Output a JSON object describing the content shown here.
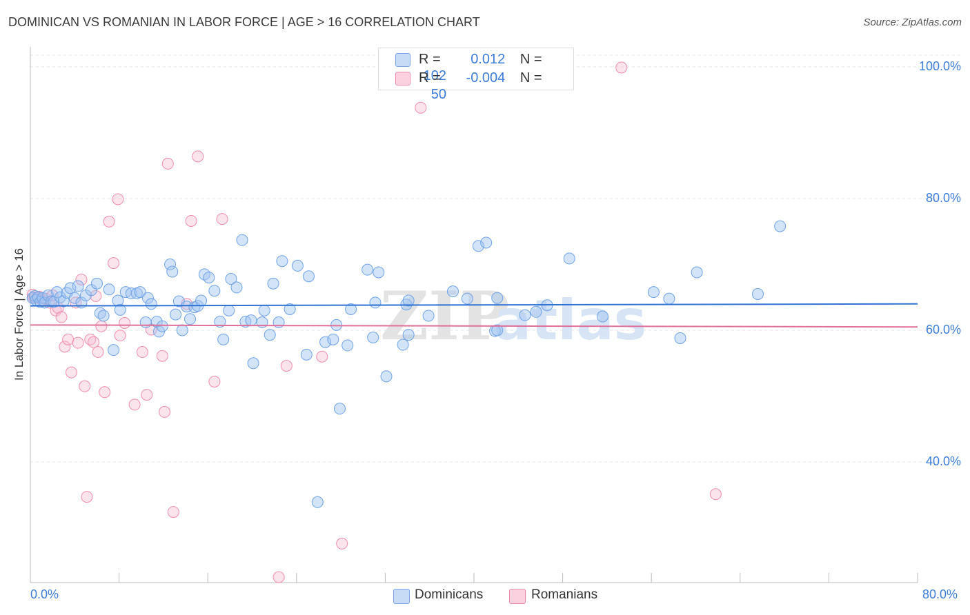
{
  "header": {
    "title": "DOMINICAN VS ROMANIAN IN LABOR FORCE | AGE > 16 CORRELATION CHART",
    "source": "Source: ZipAtlas.com"
  },
  "watermark": {
    "zip": "ZIP",
    "atlas": "atlas"
  },
  "legend": {
    "rows": [
      {
        "r_label": "R =",
        "r_value": "0.012",
        "n_label": "N =",
        "n_value": "102",
        "color": "#6ea2e6"
      },
      {
        "r_label": "R =",
        "r_value": "-0.004",
        "n_label": "N =",
        "n_value": "50",
        "color": "#f08cab"
      }
    ]
  },
  "bottom_legend": {
    "dominicans": "Dominicans",
    "romanians": "Romanians"
  },
  "chart_data": {
    "type": "scatter",
    "title": "DOMINICAN VS ROMANIAN IN LABOR FORCE | AGE > 16 CORRELATION CHART",
    "xlabel": "",
    "ylabel": "In Labor Force | Age > 16",
    "xlim": [
      0,
      80
    ],
    "ylim": [
      20,
      100
    ],
    "x_tick_labels": [
      "0.0%",
      "80.0%"
    ],
    "y_tick_values": [
      40,
      60,
      80,
      100
    ],
    "y_tick_labels": [
      "40.0%",
      "60.0%",
      "80.0%",
      "100.0%"
    ],
    "grid": true,
    "legend_position": "top-center",
    "series": [
      {
        "name": "Dominicans",
        "color": "#6ea2e6",
        "trend": {
          "x": [
            0,
            80
          ],
          "y": [
            63.7,
            64.0
          ]
        },
        "points": [
          [
            0.2,
            64.9
          ],
          [
            0.4,
            65.2
          ],
          [
            0.5,
            64.6
          ],
          [
            0.7,
            65.0
          ],
          [
            0.9,
            64.3
          ],
          [
            1.1,
            64.9
          ],
          [
            1.3,
            64.2
          ],
          [
            1.6,
            65.3
          ],
          [
            1.9,
            64.4
          ],
          [
            2.1,
            64.3
          ],
          [
            2.4,
            65.8
          ],
          [
            2.7,
            65.0
          ],
          [
            3.0,
            64.4
          ],
          [
            3.3,
            65.7
          ],
          [
            3.6,
            66.4
          ],
          [
            4.0,
            64.9
          ],
          [
            4.3,
            66.7
          ],
          [
            4.6,
            64.2
          ],
          [
            5.0,
            65.3
          ],
          [
            5.5,
            66.1
          ],
          [
            6.0,
            67.1
          ],
          [
            6.3,
            62.6
          ],
          [
            6.6,
            62.2
          ],
          [
            7.1,
            66.2
          ],
          [
            7.5,
            57.0
          ],
          [
            7.9,
            64.5
          ],
          [
            8.1,
            63.1
          ],
          [
            8.6,
            65.8
          ],
          [
            9.1,
            65.6
          ],
          [
            9.6,
            65.6
          ],
          [
            9.9,
            65.8
          ],
          [
            10.4,
            61.2
          ],
          [
            10.6,
            64.9
          ],
          [
            10.9,
            64.0
          ],
          [
            11.4,
            61.3
          ],
          [
            11.6,
            59.8
          ],
          [
            11.9,
            60.6
          ],
          [
            12.6,
            70.0
          ],
          [
            12.8,
            68.9
          ],
          [
            13.1,
            62.4
          ],
          [
            13.4,
            64.4
          ],
          [
            13.7,
            60.0
          ],
          [
            14.1,
            63.6
          ],
          [
            14.4,
            61.7
          ],
          [
            14.8,
            63.5
          ],
          [
            15.1,
            63.7
          ],
          [
            15.4,
            64.5
          ],
          [
            15.7,
            68.5
          ],
          [
            16.1,
            68.0
          ],
          [
            16.6,
            66.0
          ],
          [
            17.1,
            61.3
          ],
          [
            17.4,
            58.6
          ],
          [
            17.9,
            63.0
          ],
          [
            18.1,
            67.8
          ],
          [
            18.6,
            66.5
          ],
          [
            19.1,
            73.7
          ],
          [
            19.4,
            61.3
          ],
          [
            19.9,
            61.5
          ],
          [
            20.1,
            55.0
          ],
          [
            20.9,
            61.2
          ],
          [
            21.1,
            63.0
          ],
          [
            21.6,
            59.3
          ],
          [
            21.9,
            67.1
          ],
          [
            22.4,
            61.2
          ],
          [
            22.7,
            70.5
          ],
          [
            23.4,
            63.2
          ],
          [
            24.1,
            69.8
          ],
          [
            24.9,
            56.3
          ],
          [
            25.1,
            68.2
          ],
          [
            25.9,
            33.9
          ],
          [
            26.6,
            58.2
          ],
          [
            27.3,
            58.6
          ],
          [
            27.6,
            60.8
          ],
          [
            27.9,
            48.1
          ],
          [
            28.6,
            57.7
          ],
          [
            28.9,
            63.2
          ],
          [
            30.4,
            69.2
          ],
          [
            30.9,
            58.9
          ],
          [
            31.1,
            64.2
          ],
          [
            31.4,
            68.8
          ],
          [
            32.1,
            53.0
          ],
          [
            33.9,
            63.9
          ],
          [
            33.6,
            57.8
          ],
          [
            34.1,
            59.3
          ],
          [
            34.1,
            64.5
          ],
          [
            35.9,
            62.2
          ],
          [
            38.1,
            65.9
          ],
          [
            39.4,
            64.8
          ],
          [
            40.4,
            72.8
          ],
          [
            41.1,
            73.3
          ],
          [
            41.9,
            59.9
          ],
          [
            42.1,
            64.9
          ],
          [
            42.1,
            60.0
          ],
          [
            44.6,
            62.3
          ],
          [
            45.6,
            62.8
          ],
          [
            46.6,
            63.8
          ],
          [
            48.6,
            70.9
          ],
          [
            51.6,
            62.1
          ],
          [
            56.2,
            65.8
          ],
          [
            57.6,
            64.8
          ],
          [
            58.6,
            58.8
          ],
          [
            60.1,
            68.8
          ],
          [
            65.6,
            65.5
          ],
          [
            67.6,
            75.8
          ]
        ]
      },
      {
        "name": "Romanians",
        "color": "#f08cab",
        "trend": {
          "x": [
            0,
            80
          ],
          "y": [
            60.8,
            60.5
          ]
        },
        "points": [
          [
            0.2,
            65.4
          ],
          [
            0.5,
            64.9
          ],
          [
            0.8,
            65.1
          ],
          [
            1.1,
            64.6
          ],
          [
            1.4,
            64.8
          ],
          [
            1.7,
            64.2
          ],
          [
            2.0,
            65.3
          ],
          [
            2.3,
            63.0
          ],
          [
            2.5,
            63.4
          ],
          [
            2.8,
            62.0
          ],
          [
            3.1,
            57.5
          ],
          [
            3.4,
            58.6
          ],
          [
            3.7,
            53.6
          ],
          [
            4.1,
            64.2
          ],
          [
            4.3,
            58.1
          ],
          [
            4.6,
            67.7
          ],
          [
            4.9,
            51.5
          ],
          [
            5.1,
            34.7
          ],
          [
            5.4,
            58.6
          ],
          [
            5.7,
            58.2
          ],
          [
            5.9,
            65.2
          ],
          [
            6.1,
            56.7
          ],
          [
            6.4,
            60.6
          ],
          [
            6.7,
            50.6
          ],
          [
            7.1,
            76.5
          ],
          [
            7.5,
            70.2
          ],
          [
            7.9,
            79.9
          ],
          [
            8.1,
            59.2
          ],
          [
            8.5,
            61.1
          ],
          [
            9.4,
            48.7
          ],
          [
            10.1,
            56.7
          ],
          [
            10.5,
            50.2
          ],
          [
            10.9,
            60.1
          ],
          [
            11.9,
            56.1
          ],
          [
            12.1,
            47.6
          ],
          [
            12.4,
            85.3
          ],
          [
            12.9,
            32.4
          ],
          [
            14.1,
            64.0
          ],
          [
            14.5,
            76.6
          ],
          [
            15.1,
            86.4
          ],
          [
            16.6,
            52.2
          ],
          [
            17.3,
            76.9
          ],
          [
            22.4,
            22.5
          ],
          [
            23.1,
            54.6
          ],
          [
            26.3,
            56.0
          ],
          [
            28.1,
            27.6
          ],
          [
            35.2,
            93.8
          ],
          [
            53.3,
            99.9
          ],
          [
            61.8,
            35.1
          ],
          [
            0.3,
            65.0
          ]
        ]
      }
    ]
  }
}
